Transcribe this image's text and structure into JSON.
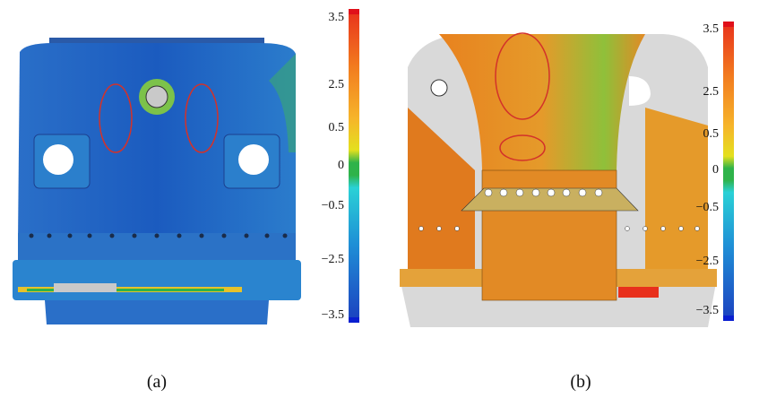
{
  "panels": [
    {
      "caption": "(a)",
      "scale_labels": [
        "3.5",
        "2.5",
        "0.5",
        "0",
        "−0.5",
        "−2.5",
        "−3.5"
      ]
    },
    {
      "caption": "(b)",
      "scale_labels": [
        "3.5",
        "2.5",
        "0.5",
        "0",
        "−0.5",
        "−2.5",
        "−3.5"
      ]
    }
  ]
}
